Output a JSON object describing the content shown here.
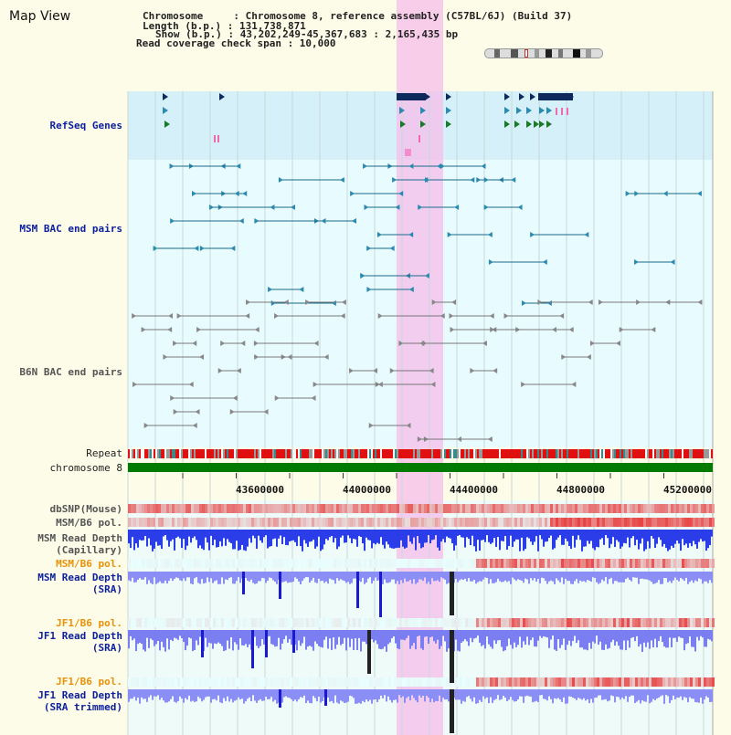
{
  "header": {
    "view_title": "Map View",
    "chromosome_label": "Chromosome     : Chromosome 8, reference assembly (C57BL/6J) (Build 37)",
    "length_label": "Length (b.p.) : 131,738,871",
    "show_label": "Show (b.p.) : 43,202,249-45,367,683 : 2,165,435 bp",
    "coverage_label": "Read coverage check span : 10,000"
  },
  "tracks": {
    "refseq": "RefSeq Genes",
    "msm_bac": "MSM BAC end pairs",
    "b6n_bac": "B6N BAC end pairs",
    "repeat": "Repeat",
    "chromosome": "chromosome 8",
    "dbsnp": "dbSNP(Mouse)",
    "msm_b6_pol": "MSM/B6 pol.",
    "msm_read_depth_cap": "MSM Read Depth\n(Capillary)",
    "msm_b6_pol2": "MSM/B6 pol.",
    "msm_read_depth_sra": "MSM Read Depth\n(SRA)",
    "jf1_b6_pol": "JF1/B6 pol.",
    "jf1_read_depth_sra": "JF1 Read Depth\n(SRA)",
    "jf1_b6_pol2": "JF1/B6 pol.",
    "jf1_read_depth_trim": "JF1 Read Depth\n(SRA trimmed)"
  },
  "axis": {
    "ticks": [
      "43600000",
      "44000000",
      "44400000",
      "44800000",
      "45200000"
    ]
  },
  "colors": {
    "refseq_bg": "#d6f0fa",
    "track_bg": "#e8fbff",
    "highlight": "#f6c8ea",
    "chromosome_bar": "#007a00",
    "repeat_red": "#e01010",
    "depth_blue": "#2a3de8",
    "pol_red": "#e84040"
  }
}
